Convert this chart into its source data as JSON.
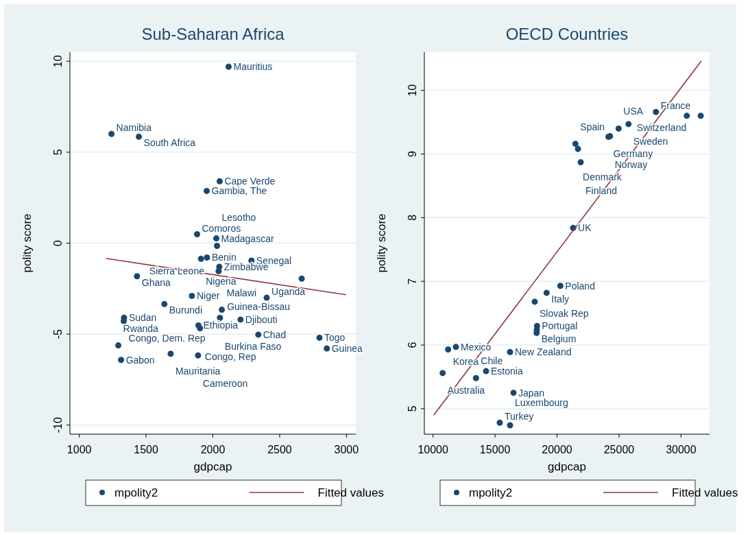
{
  "chart_data": [
    {
      "type": "scatter",
      "title": "Sub-Saharan Africa",
      "xlabel": "gdpcap",
      "ylabel": "polity score",
      "xlim": [
        930,
        3070
      ],
      "ylim": [
        -10.5,
        10.5
      ],
      "xticks": [
        1000,
        1500,
        2000,
        2500,
        3000
      ],
      "yticks": [
        -10,
        -5,
        0,
        5,
        10
      ],
      "grid": "y",
      "legend": "bottom",
      "marker": "circle",
      "series": [
        {
          "name": "mpolity2",
          "type": "scatter",
          "color": "#1a476f",
          "x": [
            2118,
            1241,
            1446,
            2051,
            1954,
            1882,
            2026,
            2031,
            1911,
            1956,
            2289,
            2048,
            2043,
            1432,
            2665,
            1843,
            2403,
            1637,
            2067,
            1335,
            1333,
            2053,
            2207,
            1892,
            1904,
            2340,
            2798,
            2853,
            1292,
            1684,
            1889,
            1313
          ],
          "values": [
            9.7,
            6.0,
            5.85,
            3.4,
            2.87,
            0.49,
            0.26,
            -0.15,
            -0.86,
            -0.79,
            -0.96,
            -1.3,
            -1.54,
            -1.82,
            -1.95,
            -2.9,
            -3.0,
            -3.35,
            -3.66,
            -4.1,
            -4.28,
            -4.11,
            -4.2,
            -4.52,
            -4.68,
            -5.03,
            -5.2,
            -5.79,
            -5.62,
            -6.08,
            -6.17,
            -6.42
          ]
        },
        {
          "name": "Fitted values",
          "type": "line",
          "color": "#90353b",
          "marker": "none",
          "x": [
            1200,
            2998
          ],
          "values": [
            -0.84,
            -2.84
          ]
        }
      ],
      "annotations": [
        {
          "text": "Mauritius",
          "x": 2118,
          "y": 9.7
        },
        {
          "text": "Namibia",
          "x": 1241,
          "y": 6.0
        },
        {
          "text": "South Africa",
          "x": 1446,
          "y": 5.85
        },
        {
          "text": "Cape Verde",
          "x": 2051,
          "y": 3.4
        },
        {
          "text": "Gambia, The",
          "x": 1954,
          "y": 2.87
        },
        {
          "text": "Comoros",
          "x": 1882,
          "y": 0.49
        },
        {
          "text": "Madagascar",
          "x": 2026,
          "y": 0.26
        },
        {
          "text": "Lesotho",
          "x": 2031,
          "y": -0.15
        },
        {
          "text": "Nigeria",
          "x": 1911,
          "y": -0.86
        },
        {
          "text": "Benin",
          "x": 1956,
          "y": -0.79
        },
        {
          "text": "Senegal",
          "x": 2289,
          "y": -0.96
        },
        {
          "text": "Zimbabwe",
          "x": 2048,
          "y": -1.3
        },
        {
          "text": "Sierra Leone",
          "x": 2043,
          "y": -1.54
        },
        {
          "text": "Ghana",
          "x": 1432,
          "y": -1.82
        },
        {
          "text": "Guinea-Bissau",
          "x": 2665,
          "y": -1.95
        },
        {
          "text": "Niger",
          "x": 1843,
          "y": -2.9
        },
        {
          "text": "Uganda",
          "x": 2403,
          "y": -3.0
        },
        {
          "text": "Burundi",
          "x": 1637,
          "y": -3.35
        },
        {
          "text": "Malawi",
          "x": 2067,
          "y": -3.66
        },
        {
          "text": "Sudan",
          "x": 1335,
          "y": -4.1
        },
        {
          "text": "Congo, Dem. Rep",
          "x": 1333,
          "y": -4.28
        },
        {
          "text": "Burkina Faso",
          "x": 2053,
          "y": -4.11
        },
        {
          "text": "Djibouti",
          "x": 2207,
          "y": -4.2
        },
        {
          "text": "Ethiopia",
          "x": 1892,
          "y": -4.52
        },
        {
          "text": "Congo, Rep",
          "x": 1904,
          "y": -4.68
        },
        {
          "text": "Chad",
          "x": 2340,
          "y": -5.03
        },
        {
          "text": "Togo",
          "x": 2798,
          "y": -5.2
        },
        {
          "text": "Guinea",
          "x": 2853,
          "y": -5.79
        },
        {
          "text": "Rwanda",
          "x": 1292,
          "y": -5.62
        },
        {
          "text": "Mauritania",
          "x": 1684,
          "y": -6.08
        },
        {
          "text": "Cameroon",
          "x": 1889,
          "y": -6.17
        },
        {
          "text": "Gabon",
          "x": 1313,
          "y": -6.42
        }
      ]
    },
    {
      "type": "scatter",
      "title": "OECD Countries",
      "xlabel": "gdpcap",
      "ylabel": "polity score",
      "xlim": [
        9300,
        32300
      ],
      "ylim": [
        4.6,
        10.6
      ],
      "xticks": [
        10000,
        15000,
        20000,
        25000,
        30000
      ],
      "yticks": [
        5,
        6,
        7,
        8,
        9,
        10
      ],
      "grid": "y",
      "legend": "bottom",
      "marker": "circle",
      "series": [
        {
          "name": "mpolity2",
          "type": "scatter",
          "color": "#1a476f",
          "x": [
            27976,
            30465,
            31587,
            25763,
            24967,
            24150,
            24270,
            21483,
            21687,
            21908,
            21300,
            20266,
            19159,
            18202,
            18385,
            18370,
            18352,
            11842,
            11217,
            16211,
            10774,
            14275,
            13463,
            16488,
            15382,
            16211
          ],
          "values": [
            9.66,
            9.6,
            9.6,
            9.47,
            9.4,
            9.27,
            9.28,
            9.16,
            9.08,
            8.87,
            7.84,
            6.93,
            6.82,
            6.68,
            6.3,
            6.24,
            6.19,
            5.97,
            5.93,
            5.89,
            5.56,
            5.59,
            5.48,
            5.25,
            4.78,
            4.74
          ]
        },
        {
          "name": "Fitted values",
          "type": "line",
          "color": "#90353b",
          "marker": "none",
          "x": [
            10055,
            31626
          ],
          "values": [
            4.9,
            10.46
          ]
        }
      ],
      "annotations": [
        {
          "text": "France",
          "x": 27976,
          "y": 9.66
        },
        {
          "text": "Switzerland",
          "x": 31587,
          "y": 9.6
        },
        {
          "text": "Sweden",
          "x": 25763,
          "y": 9.47
        },
        {
          "text": "USA",
          "x": 24967,
          "y": 9.4
        },
        {
          "text": "Germany",
          "x": 24150,
          "y": 9.27
        },
        {
          "text": "Norway",
          "x": 24270,
          "y": 9.28
        },
        {
          "text": "Spain",
          "x": 21483,
          "y": 9.16
        },
        {
          "text": "Denmark",
          "x": 21687,
          "y": 9.08
        },
        {
          "text": "Finland",
          "x": 21908,
          "y": 8.87
        },
        {
          "text": "UK",
          "x": 21300,
          "y": 7.84
        },
        {
          "text": "Poland",
          "x": 20266,
          "y": 6.93
        },
        {
          "text": "Italy",
          "x": 19159,
          "y": 6.82
        },
        {
          "text": "Slovak Rep",
          "x": 18202,
          "y": 6.68
        },
        {
          "text": "Portugal",
          "x": 18385,
          "y": 6.3
        },
        {
          "text": "Belgium",
          "x": 18352,
          "y": 6.19
        },
        {
          "text": "Mexico",
          "x": 11842,
          "y": 5.97
        },
        {
          "text": "Korea",
          "x": 11217,
          "y": 5.93
        },
        {
          "text": "New Zealand",
          "x": 16211,
          "y": 5.89
        },
        {
          "text": "Australia",
          "x": 10774,
          "y": 5.56
        },
        {
          "text": "Estonia",
          "x": 14275,
          "y": 5.59
        },
        {
          "text": "Chile",
          "x": 13463,
          "y": 5.48
        },
        {
          "text": "Japan",
          "x": 16488,
          "y": 5.25
        },
        {
          "text": "Turkey",
          "x": 15382,
          "y": 4.78
        },
        {
          "text": "Luxembourg",
          "x": 16211,
          "y": 4.74
        }
      ]
    }
  ]
}
